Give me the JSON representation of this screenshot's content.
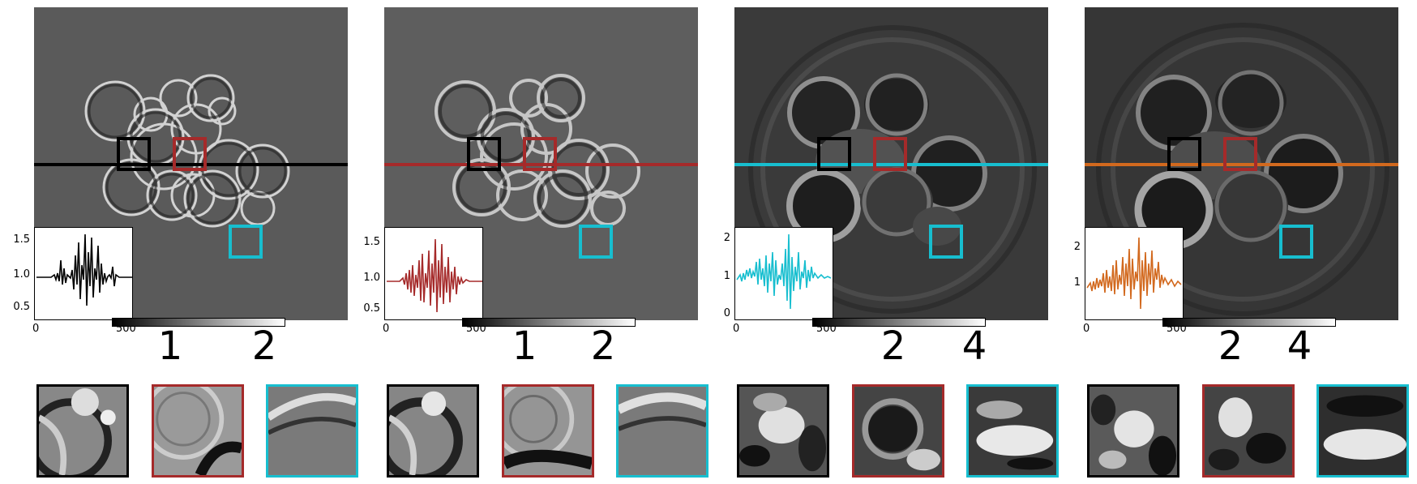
{
  "colors": {
    "black_series": "#000000",
    "red_series": "#a52a2a",
    "cyan_series": "#17becf",
    "orange_series": "#d2691e",
    "crop_black": "#000000",
    "crop_red": "#a52a2a",
    "crop_cyan": "#17becf"
  },
  "panels": [
    {
      "line_color": "#000000",
      "background": "#5a5a5a",
      "inset": {
        "yticks": [
          "1.5",
          "1.0",
          "0.5"
        ],
        "xtick_0": "0",
        "xtick_500": "500"
      },
      "colorbar_ticks": [
        "1",
        "2"
      ]
    },
    {
      "line_color": "#a52a2a",
      "background": "#5e5e5e",
      "inset": {
        "yticks": [
          "1.5",
          "1.0",
          "0.5"
        ],
        "xtick_0": "0",
        "xtick_500": "500"
      },
      "colorbar_ticks": [
        "1",
        "2"
      ]
    },
    {
      "line_color": "#17becf",
      "background": "#3a3a3a",
      "inset": {
        "yticks": [
          "2",
          "1",
          "0"
        ],
        "xtick_0": "0",
        "xtick_500": "500"
      },
      "colorbar_ticks": [
        "2",
        "4"
      ]
    },
    {
      "line_color": "#d2691e",
      "background": "#363636",
      "inset": {
        "yticks": [
          "2",
          "1"
        ],
        "xtick_0": "0",
        "xtick_500": "500"
      },
      "colorbar_ticks": [
        "2",
        "4"
      ]
    }
  ]
}
